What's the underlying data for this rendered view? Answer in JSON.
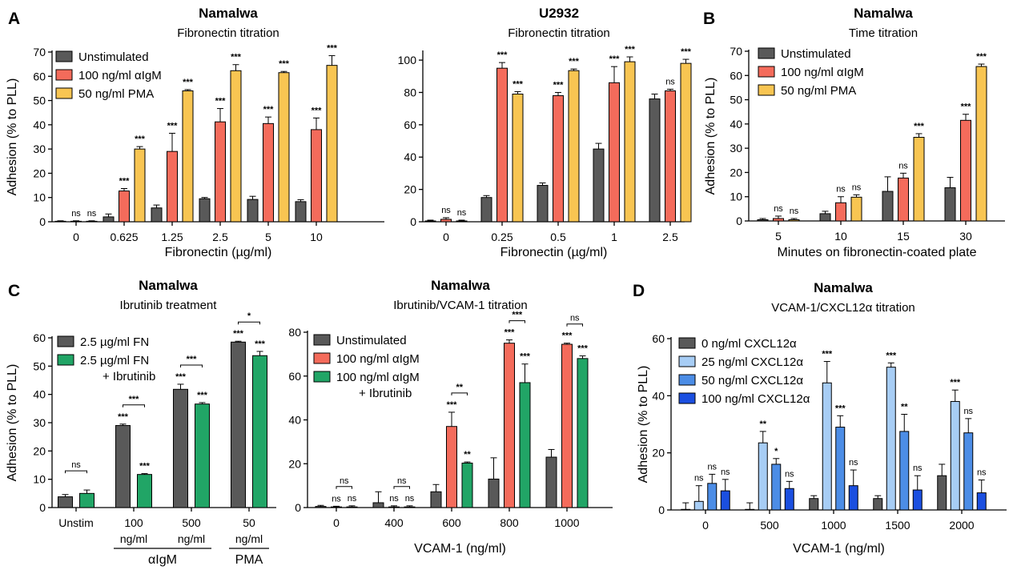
{
  "panel_labels": [
    "A",
    "B",
    "C",
    "D"
  ],
  "colors": {
    "unstim": "#595959",
    "igm": "#F46B5B",
    "pma": "#F8C552",
    "ibr": "#21A566",
    "cx0": "#595959",
    "cx25": "#A7CDF5",
    "cx50": "#4C8DE6",
    "cx100": "#1B4FE0"
  },
  "chart_data": [
    {
      "id": "A1",
      "type": "bar",
      "title": "Namalwa",
      "subtitle": "Fibronectin titration",
      "xlabel": "Fibronectin (µg/ml)",
      "ylabel": "Adhesion (% to PLL)",
      "ylim": [
        0,
        70
      ],
      "yticks": [
        0,
        10,
        20,
        30,
        40,
        50,
        60,
        70
      ],
      "legend_position": "top-left",
      "categories": [
        "0",
        "0.625",
        "1.25",
        "2.5",
        "5",
        "10"
      ],
      "series": [
        {
          "name": "Unstimulated",
          "color_key": "unstim",
          "values": [
            0.2,
            2,
            5.7,
            9.5,
            9.2,
            8.3
          ],
          "errors": [
            0.2,
            1.2,
            1.2,
            0.5,
            1.3,
            0.8
          ],
          "labels": [
            "",
            "",
            "",
            "",
            "",
            ""
          ]
        },
        {
          "name": "100 ng/ml αIgM",
          "color_key": "igm",
          "values": [
            0.2,
            12.7,
            29,
            41.2,
            40.5,
            38
          ],
          "errors": [
            0.2,
            1,
            7.5,
            5.5,
            2.7,
            4.8
          ],
          "labels": [
            "ns",
            "***",
            "***",
            "***",
            "***",
            "***"
          ]
        },
        {
          "name": "50 ng/ml PMA",
          "color_key": "pma",
          "values": [
            0.2,
            30,
            54,
            62.3,
            61.5,
            64.5
          ],
          "errors": [
            0.2,
            1,
            0.5,
            2.5,
            0.5,
            4
          ],
          "labels": [
            "ns",
            "***",
            "***",
            "***",
            "***",
            "***"
          ]
        }
      ]
    },
    {
      "id": "A2",
      "type": "bar",
      "title": "U2932",
      "subtitle": "Fibronectin titration",
      "xlabel": "Fibronectin (µg/ml)",
      "ylabel": "",
      "ylim": [
        0,
        105
      ],
      "yticks": [
        0,
        20,
        40,
        60,
        80,
        100
      ],
      "legend_position": "none",
      "categories": [
        "0",
        "0.25",
        "0.5",
        "1",
        "2.5"
      ],
      "series": [
        {
          "name": "Unstimulated",
          "color_key": "unstim",
          "values": [
            0.5,
            15,
            22.5,
            45,
            76
          ],
          "errors": [
            0.5,
            1.2,
            1.5,
            3.5,
            3
          ],
          "labels": [
            "",
            "",
            "",
            "",
            ""
          ]
        },
        {
          "name": "100 ng/ml αIgM",
          "color_key": "igm",
          "values": [
            1.5,
            95,
            78,
            86,
            81
          ],
          "errors": [
            1,
            3.5,
            2,
            10,
            1
          ],
          "labels": [
            "ns",
            "***",
            "***",
            "***",
            "ns"
          ]
        },
        {
          "name": "50 ng/ml PMA",
          "color_key": "pma",
          "values": [
            0.5,
            79,
            93.5,
            99,
            98
          ],
          "errors": [
            0.5,
            1.5,
            1,
            3,
            2.5
          ],
          "labels": [
            "ns",
            "***",
            "***",
            "***",
            "***"
          ]
        }
      ]
    },
    {
      "id": "B",
      "type": "bar",
      "title": "Namalwa",
      "subtitle": "Time titration",
      "xlabel": "Minutes on fibronectin-coated plate",
      "ylabel": "Adhesion (% to PLL)",
      "ylim": [
        0,
        70
      ],
      "yticks": [
        0,
        10,
        20,
        30,
        40,
        50,
        60,
        70
      ],
      "legend_position": "top-left",
      "categories": [
        "5",
        "10",
        "15",
        "30"
      ],
      "series": [
        {
          "name": "Unstimulated",
          "color_key": "unstim",
          "values": [
            0.5,
            3,
            12.2,
            13.7
          ],
          "errors": [
            0.5,
            1,
            6,
            4.3
          ],
          "labels": [
            "",
            "",
            "",
            ""
          ]
        },
        {
          "name": "100 ng/ml αIgM",
          "color_key": "igm",
          "values": [
            1,
            7.5,
            17.7,
            41.5
          ],
          "errors": [
            1,
            2.5,
            2,
            2.5
          ],
          "labels": [
            "ns",
            "ns",
            "ns",
            "***"
          ]
        },
        {
          "name": "50 ng/ml PMA",
          "color_key": "pma",
          "values": [
            0.5,
            9.8,
            34.5,
            63.7
          ],
          "errors": [
            0.5,
            1,
            1.5,
            1
          ],
          "labels": [
            "ns",
            "ns",
            "***",
            "***"
          ]
        }
      ]
    },
    {
      "id": "C1",
      "type": "bar",
      "title": "Namalwa",
      "subtitle": "Ibrutinib treatment",
      "xlabel": "",
      "ylabel": "Adhesion (% to PLL)",
      "ylim": [
        0,
        60
      ],
      "yticks": [
        0,
        10,
        20,
        30,
        40,
        50,
        60
      ],
      "legend_position": "top-left",
      "categories": [
        "Unstim",
        "100",
        "500",
        "50"
      ],
      "category_sublabels": [
        "",
        "ng/ml",
        "ng/ml",
        "ng/ml"
      ],
      "group_labels": [
        {
          "text": "αIgM",
          "from": 1,
          "to": 2
        },
        {
          "text": "PMA",
          "from": 3,
          "to": 3
        }
      ],
      "series": [
        {
          "name": "2.5 µg/ml FN",
          "color_key": "unstim",
          "values": [
            3.8,
            29,
            41.8,
            58.5
          ],
          "errors": [
            0.8,
            0.5,
            1.8,
            0.3
          ],
          "labels": [
            "",
            "***",
            "***",
            "***"
          ]
        },
        {
          "name": "2.5 µg/ml FN",
          "name_line2": "+ Ibrutinib",
          "color_key": "ibr",
          "values": [
            5,
            11.7,
            36.6,
            53.7
          ],
          "errors": [
            1.2,
            0.3,
            0.5,
            1.5
          ],
          "labels": [
            "",
            "***",
            "***",
            "***"
          ]
        }
      ],
      "brackets": [
        "ns",
        "***",
        "***",
        "*"
      ]
    },
    {
      "id": "C2",
      "type": "bar",
      "title": "Namalwa",
      "subtitle": "Ibrutinib/VCAM-1 titration",
      "xlabel": "VCAM-1 (ng/ml)",
      "ylabel": "",
      "ylim": [
        0,
        80
      ],
      "yticks": [
        0,
        20,
        40,
        60,
        80
      ],
      "legend_position": "top-left",
      "categories": [
        "0",
        "400",
        "600",
        "800",
        "1000"
      ],
      "series": [
        {
          "name": "Unstimulated",
          "color_key": "unstim",
          "values": [
            0.5,
            2.2,
            7.2,
            13,
            23
          ],
          "errors": [
            0.5,
            5,
            3.3,
            9.7,
            3.5
          ],
          "labels": [
            "",
            "",
            "",
            "",
            ""
          ]
        },
        {
          "name": "100 ng/ml αIgM",
          "color_key": "igm",
          "values": [
            0.3,
            0.3,
            37,
            75,
            74.5
          ],
          "errors": [
            0.3,
            0.5,
            6.5,
            1.5,
            0.5
          ],
          "labels": [
            "ns",
            "ns",
            "***",
            "***",
            "***"
          ]
        },
        {
          "name": "100 ng/ml αIgM",
          "name_line2": "+ Ibrutinib",
          "color_key": "ibr",
          "values": [
            0.3,
            0.3,
            20.3,
            57,
            68
          ],
          "errors": [
            0.5,
            0.5,
            0.5,
            8.5,
            1.2
          ],
          "labels": [
            "ns",
            "ns",
            "**",
            "***",
            "***"
          ]
        }
      ],
      "brackets": [
        "ns",
        "ns",
        "**",
        "***",
        "ns"
      ]
    },
    {
      "id": "D",
      "type": "bar",
      "title": "Namalwa",
      "subtitle": "VCAM-1/CXCL12α titration",
      "xlabel": "VCAM-1 (ng/ml)",
      "ylabel": "Adhesion (% to PLL)",
      "ylim": [
        0,
        60
      ],
      "yticks": [
        0,
        20,
        40,
        60
      ],
      "legend_position": "top-left",
      "categories": [
        "0",
        "500",
        "1000",
        "1500",
        "2000"
      ],
      "series": [
        {
          "name": "0 ng/ml CXCL12α",
          "color_key": "cx0",
          "values": [
            0.2,
            0.2,
            4,
            4,
            12
          ],
          "errors": [
            2.3,
            2.3,
            1,
            1,
            4
          ],
          "labels": [
            "",
            "",
            "",
            "",
            ""
          ]
        },
        {
          "name": "25 ng/ml CXCL12α",
          "color_key": "cx25",
          "values": [
            3,
            23.5,
            44.5,
            50,
            38
          ],
          "errors": [
            5.5,
            4,
            7.5,
            1.5,
            4
          ],
          "labels": [
            "ns",
            "**",
            "***",
            "***",
            "***"
          ]
        },
        {
          "name": "50 ng/ml CXCL12α",
          "color_key": "cx50",
          "values": [
            9.3,
            16,
            29,
            27.5,
            27
          ],
          "errors": [
            3.2,
            2,
            4,
            6,
            5
          ],
          "labels": [
            "ns",
            "*",
            "***",
            "**",
            "ns"
          ]
        },
        {
          "name": "100 ng/ml CXCL12α",
          "color_key": "cx100",
          "values": [
            6.7,
            7.5,
            8.5,
            7,
            6
          ],
          "errors": [
            4,
            2.5,
            5.5,
            5,
            4.5
          ],
          "labels": [
            "ns",
            "ns",
            "ns",
            "ns",
            "ns"
          ]
        }
      ]
    }
  ]
}
